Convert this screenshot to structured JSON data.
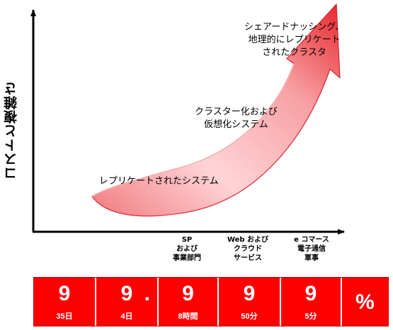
{
  "axis": {
    "ylabel": "コストと複雑さ"
  },
  "stages": [
    {
      "lines": [
        "レプリケートされたシステム"
      ]
    },
    {
      "lines": [
        "クラスター化および",
        "仮想化システム"
      ]
    },
    {
      "lines": [
        "シェアードナッシング、",
        "地理的にレプリケート",
        "されたクラスタ"
      ]
    }
  ],
  "categories": [
    {
      "lines": [
        "SP",
        "および",
        "事業部門"
      ]
    },
    {
      "lines": [
        "Web および",
        "クラウド",
        "サービス"
      ]
    },
    {
      "lines": [
        "e コマース",
        "電子通信",
        "軍事"
      ]
    }
  ],
  "availability_bar": {
    "cells": [
      {
        "big": "9",
        "sub": "35日"
      },
      {
        "big": "9",
        "dot": ".",
        "sub": "4日"
      },
      {
        "big": "9",
        "sub": "8時間"
      },
      {
        "big": "9",
        "sub": "50分"
      },
      {
        "big": "9",
        "sub": "5分"
      },
      {
        "big": "%",
        "sub": ""
      }
    ]
  },
  "colors": {
    "arrow_light": "#ffd5d5",
    "arrow_dark": "#e8252c",
    "bar": "#ff0000"
  }
}
